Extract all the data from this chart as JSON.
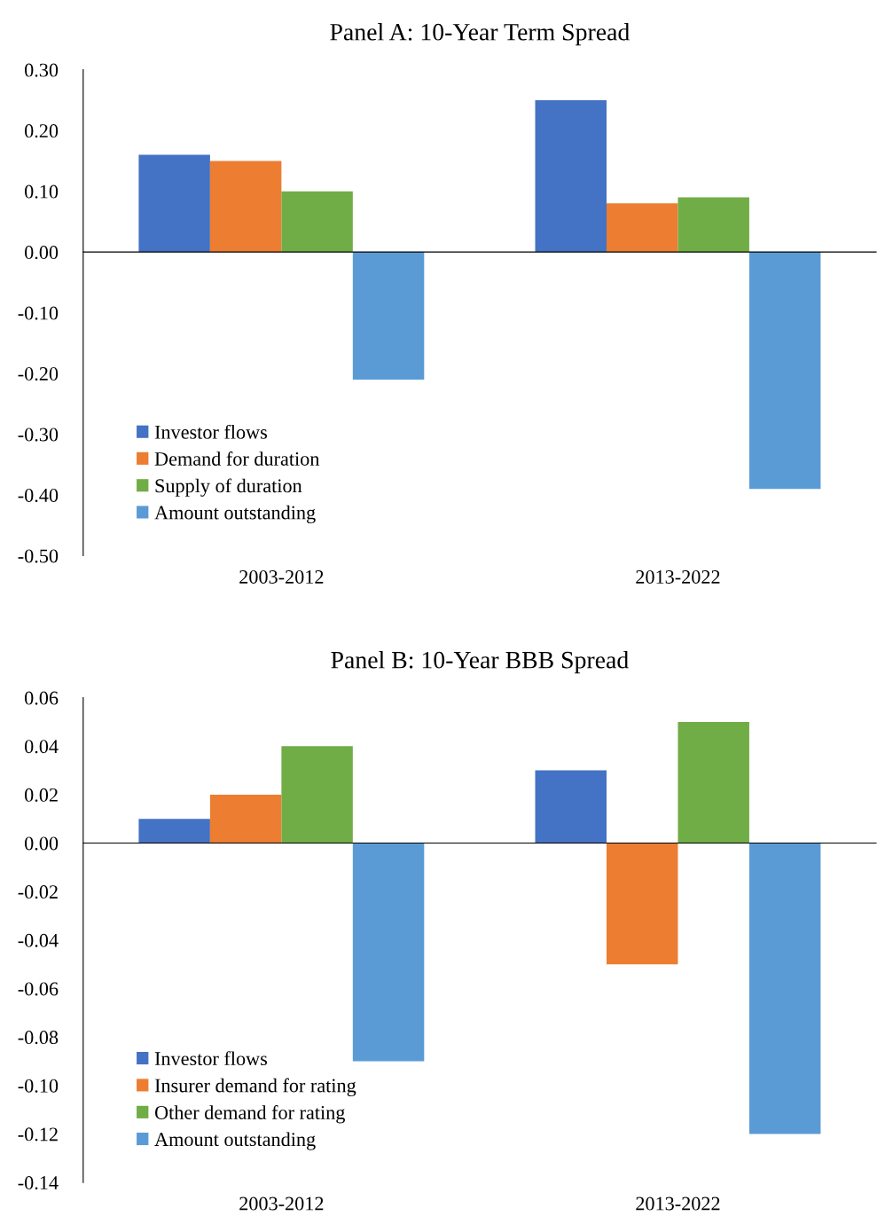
{
  "chart_data": [
    {
      "type": "bar",
      "title": "Panel A: 10-Year Term Spread",
      "categories": [
        "2003-2012",
        "2013-2022"
      ],
      "series": [
        {
          "name": "Investor flows",
          "color": "#4472c4",
          "values": [
            0.16,
            0.25
          ]
        },
        {
          "name": "Demand for duration",
          "color": "#ed7d31",
          "values": [
            0.15,
            0.08
          ]
        },
        {
          "name": "Supply of duration",
          "color": "#70ad47",
          "values": [
            0.1,
            0.09
          ]
        },
        {
          "name": "Amount outstanding",
          "color": "#5b9bd5",
          "values": [
            -0.21,
            -0.39
          ]
        }
      ],
      "ylim": [
        -0.5,
        0.3
      ],
      "yticks": [
        {
          "value": 0.3,
          "label": "0.30"
        },
        {
          "value": 0.2,
          "label": "0.20"
        },
        {
          "value": 0.1,
          "label": "0.10"
        },
        {
          "value": 0,
          "label": "0.00"
        },
        {
          "value": -0.1,
          "label": "-0.10"
        },
        {
          "value": -0.2,
          "label": "-0.20"
        },
        {
          "value": -0.3,
          "label": "-0.30"
        },
        {
          "value": -0.4,
          "label": "-0.40"
        },
        {
          "value": -0.5,
          "label": "-0.50"
        }
      ],
      "legend": "bottom left"
    },
    {
      "type": "bar",
      "title": "Panel B: 10-Year BBB Spread",
      "categories": [
        "2003-2012",
        "2013-2022"
      ],
      "series": [
        {
          "name": "Investor flows",
          "color": "#4472c4",
          "values": [
            0.01,
            0.03
          ]
        },
        {
          "name": "Insurer demand for rating",
          "color": "#ed7d31",
          "values": [
            0.02,
            -0.05
          ]
        },
        {
          "name": "Other demand for rating",
          "color": "#70ad47",
          "values": [
            0.04,
            0.05
          ]
        },
        {
          "name": "Amount outstanding",
          "color": "#5b9bd5",
          "values": [
            -0.09,
            -0.12
          ]
        }
      ],
      "ylim": [
        -0.14,
        0.06
      ],
      "yticks": [
        {
          "value": 0.06,
          "label": "0.06"
        },
        {
          "value": 0.04,
          "label": "0.04"
        },
        {
          "value": 0.02,
          "label": "0.02"
        },
        {
          "value": 0,
          "label": "0.00"
        },
        {
          "value": -0.02,
          "label": "-0.02"
        },
        {
          "value": -0.04,
          "label": "-0.04"
        },
        {
          "value": -0.06,
          "label": "-0.06"
        },
        {
          "value": -0.08,
          "label": "-0.08"
        },
        {
          "value": -0.1,
          "label": "-0.10"
        },
        {
          "value": -0.12,
          "label": "-0.12"
        },
        {
          "value": -0.14,
          "label": "-0.14"
        }
      ],
      "legend": "bottom left"
    }
  ]
}
